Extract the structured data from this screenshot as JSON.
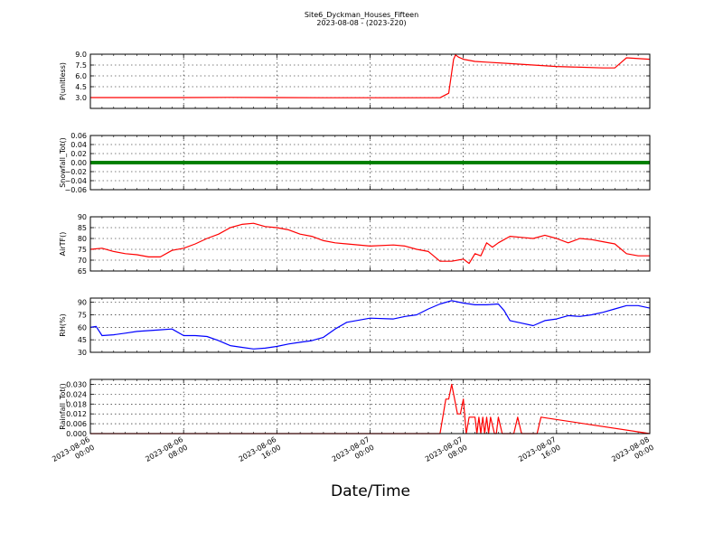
{
  "title": "Site6_Dyckman_Houses_Fifteen",
  "subtitle": "2023-08-08 - (2023-220)",
  "xlabel": "Date/Time",
  "x_ticks": [
    {
      "line1": "2023-08-06",
      "line2": "00:00"
    },
    {
      "line1": "2023-08-06",
      "line2": "08:00"
    },
    {
      "line1": "2023-08-06",
      "line2": "16:00"
    },
    {
      "line1": "2023-08-07",
      "line2": "00:00"
    },
    {
      "line1": "2023-08-07",
      "line2": "08:00"
    },
    {
      "line1": "2023-08-07",
      "line2": "16:00"
    },
    {
      "line1": "2023-08-08",
      "line2": "00:00"
    }
  ],
  "chart_data": [
    {
      "type": "line",
      "ylabel": "P(unitless)",
      "ylim": [
        1.5,
        9.0
      ],
      "yticks": [
        "3.0",
        "4.5",
        "6.0",
        "7.5",
        "9.0"
      ],
      "xlim": [
        "2023-08-06 00:00",
        "2023-08-08 00:00"
      ],
      "grid": true,
      "color": "#ff0000",
      "series": [
        {
          "x": [
            "2023-08-06 00:00",
            "2023-08-06 04:00",
            "2023-08-06 08:00",
            "2023-08-06 12:00",
            "2023-08-06 16:00",
            "2023-08-06 20:00",
            "2023-08-07 00:00",
            "2023-08-07 04:00",
            "2023-08-07 06:00",
            "2023-08-07 06:45",
            "2023-08-07 07:10",
            "2023-08-07 07:20",
            "2023-08-07 07:35",
            "2023-08-07 08:00",
            "2023-08-07 09:00",
            "2023-08-07 10:00",
            "2023-08-07 12:00",
            "2023-08-07 14:00",
            "2023-08-07 16:00",
            "2023-08-07 18:00",
            "2023-08-07 20:00",
            "2023-08-07 21:00",
            "2023-08-07 21:30",
            "2023-08-07 22:00",
            "2023-08-08 00:00"
          ],
          "values": [
            3.0,
            3.0,
            3.0,
            3.02,
            3.0,
            2.98,
            2.98,
            2.97,
            2.97,
            3.6,
            8.3,
            8.9,
            8.6,
            8.3,
            8.0,
            7.9,
            7.7,
            7.5,
            7.3,
            7.2,
            7.1,
            7.1,
            7.8,
            8.5,
            8.3
          ]
        }
      ]
    },
    {
      "type": "line",
      "ylabel": "Snowfall_Tot()",
      "ylim": [
        -0.06,
        0.06
      ],
      "yticks": [
        "−0.06",
        "−0.04",
        "−0.02",
        "0.00",
        "0.02",
        "0.04",
        "0.06"
      ],
      "xlim": [
        "2023-08-06 00:00",
        "2023-08-08 00:00"
      ],
      "grid": true,
      "color": "#008000",
      "series": [
        {
          "x": [
            "2023-08-06 00:00",
            "2023-08-08 00:00"
          ],
          "values": [
            0.0,
            0.0
          ]
        }
      ]
    },
    {
      "type": "line",
      "ylabel": "AirTF()",
      "ylim": [
        65,
        90
      ],
      "yticks": [
        "65",
        "70",
        "75",
        "80",
        "85",
        "90"
      ],
      "xlim": [
        "2023-08-06 00:00",
        "2023-08-08 00:00"
      ],
      "grid": true,
      "color": "#ff0000",
      "series": [
        {
          "x": [
            "2023-08-06 00:00",
            "2023-08-06 01:00",
            "2023-08-06 02:00",
            "2023-08-06 03:00",
            "2023-08-06 04:00",
            "2023-08-06 05:00",
            "2023-08-06 06:00",
            "2023-08-06 07:00",
            "2023-08-06 08:00",
            "2023-08-06 09:00",
            "2023-08-06 10:00",
            "2023-08-06 11:00",
            "2023-08-06 12:00",
            "2023-08-06 13:00",
            "2023-08-06 14:00",
            "2023-08-06 15:00",
            "2023-08-06 16:00",
            "2023-08-06 17:00",
            "2023-08-06 18:00",
            "2023-08-06 19:00",
            "2023-08-06 20:00",
            "2023-08-06 21:00",
            "2023-08-06 22:00",
            "2023-08-07 00:00",
            "2023-08-07 02:00",
            "2023-08-07 03:00",
            "2023-08-07 04:00",
            "2023-08-07 05:00",
            "2023-08-07 06:00",
            "2023-08-07 07:00",
            "2023-08-07 08:00",
            "2023-08-07 08:30",
            "2023-08-07 09:00",
            "2023-08-07 09:30",
            "2023-08-07 10:00",
            "2023-08-07 10:30",
            "2023-08-07 11:00",
            "2023-08-07 12:00",
            "2023-08-07 13:00",
            "2023-08-07 14:00",
            "2023-08-07 15:00",
            "2023-08-07 16:00",
            "2023-08-07 17:00",
            "2023-08-07 18:00",
            "2023-08-07 19:00",
            "2023-08-07 20:00",
            "2023-08-07 21:00",
            "2023-08-07 22:00",
            "2023-08-07 23:00",
            "2023-08-08 00:00"
          ],
          "values": [
            75,
            75.5,
            74,
            73,
            72.5,
            71.5,
            71.5,
            74.5,
            75.5,
            77.5,
            80,
            82,
            85,
            86.5,
            87,
            85.5,
            85,
            84,
            82,
            81,
            79,
            78,
            77.5,
            76.5,
            77,
            76.5,
            75,
            74,
            69.5,
            69.5,
            70.5,
            68.5,
            73,
            72,
            78,
            76,
            78,
            81,
            80.5,
            80,
            81.5,
            80,
            78,
            80,
            79.5,
            78.5,
            77.5,
            73,
            72,
            72
          ]
        }
      ]
    },
    {
      "type": "line",
      "ylabel": "RH(%)",
      "ylim": [
        30,
        95
      ],
      "yticks": [
        "30",
        "45",
        "60",
        "75",
        "90"
      ],
      "xlim": [
        "2023-08-06 00:00",
        "2023-08-08 00:00"
      ],
      "grid": true,
      "color": "#0000ff",
      "series": [
        {
          "x": [
            "2023-08-06 00:00",
            "2023-08-06 00:30",
            "2023-08-06 01:00",
            "2023-08-06 02:00",
            "2023-08-06 03:00",
            "2023-08-06 04:00",
            "2023-08-06 05:00",
            "2023-08-06 06:00",
            "2023-08-06 07:00",
            "2023-08-06 08:00",
            "2023-08-06 09:00",
            "2023-08-06 10:00",
            "2023-08-06 11:00",
            "2023-08-06 12:00",
            "2023-08-06 13:00",
            "2023-08-06 14:00",
            "2023-08-06 15:00",
            "2023-08-06 16:00",
            "2023-08-06 17:00",
            "2023-08-06 18:00",
            "2023-08-06 19:00",
            "2023-08-06 20:00",
            "2023-08-06 21:00",
            "2023-08-06 22:00",
            "2023-08-07 00:00",
            "2023-08-07 02:00",
            "2023-08-07 03:00",
            "2023-08-07 04:00",
            "2023-08-07 05:00",
            "2023-08-07 06:00",
            "2023-08-07 07:00",
            "2023-08-07 08:00",
            "2023-08-07 09:00",
            "2023-08-07 10:00",
            "2023-08-07 11:00",
            "2023-08-07 11:30",
            "2023-08-07 12:00",
            "2023-08-07 13:00",
            "2023-08-07 14:00",
            "2023-08-07 15:00",
            "2023-08-07 16:00",
            "2023-08-07 17:00",
            "2023-08-07 18:00",
            "2023-08-07 19:00",
            "2023-08-07 20:00",
            "2023-08-07 21:00",
            "2023-08-07 22:00",
            "2023-08-07 23:00",
            "2023-08-08 00:00"
          ],
          "values": [
            60,
            61,
            50,
            51,
            53,
            55,
            56,
            57,
            58,
            50,
            50,
            49,
            44,
            38,
            36,
            34,
            35,
            37,
            40,
            42,
            44,
            48,
            58,
            66,
            71,
            70,
            73,
            75,
            82,
            88,
            92,
            89,
            87,
            87,
            88,
            80,
            68,
            65,
            62,
            68,
            70,
            74,
            73,
            75,
            78,
            82,
            86,
            86,
            83
          ]
        }
      ]
    },
    {
      "type": "line",
      "ylabel": "Rainfall_Tot()",
      "ylim": [
        0,
        0.033
      ],
      "yticks": [
        "0.000",
        "0.006",
        "0.012",
        "0.018",
        "0.024",
        "0.030"
      ],
      "xlim": [
        "2023-08-06 00:00",
        "2023-08-08 00:00"
      ],
      "grid": true,
      "color": "#ff0000",
      "series": [
        {
          "x": [
            "2023-08-06 00:00",
            "2023-08-07 06:00",
            "2023-08-07 06:30",
            "2023-08-07 06:45",
            "2023-08-07 07:00",
            "2023-08-07 07:15",
            "2023-08-07 07:30",
            "2023-08-07 07:45",
            "2023-08-07 08:00",
            "2023-08-07 08:15",
            "2023-08-07 08:30",
            "2023-08-07 08:45",
            "2023-08-07 09:00",
            "2023-08-07 09:10",
            "2023-08-07 09:20",
            "2023-08-07 09:30",
            "2023-08-07 09:40",
            "2023-08-07 09:50",
            "2023-08-07 10:00",
            "2023-08-07 10:10",
            "2023-08-07 10:20",
            "2023-08-07 10:40",
            "2023-08-07 10:50",
            "2023-08-07 11:00",
            "2023-08-07 11:20",
            "2023-08-07 11:40",
            "2023-08-07 12:00",
            "2023-08-07 12:20",
            "2023-08-07 12:40",
            "2023-08-07 13:00",
            "2023-08-07 13:30",
            "2023-08-07 14:00",
            "2023-08-07 14:20",
            "2023-08-07 14:40",
            "2023-08-08 00:00"
          ],
          "values": [
            0,
            0,
            0.021,
            0.021,
            0.03,
            0.021,
            0.012,
            0.012,
            0.021,
            0.0,
            0.01,
            0.01,
            0.01,
            0.0,
            0.01,
            0.0,
            0.01,
            0.0,
            0.01,
            0.0,
            0.01,
            0.0,
            0.0,
            0.01,
            0.0,
            0.0,
            0.0,
            0.0,
            0.01,
            0.0,
            0.0,
            0.0,
            0.0,
            0.01,
            0.0
          ]
        }
      ]
    }
  ]
}
